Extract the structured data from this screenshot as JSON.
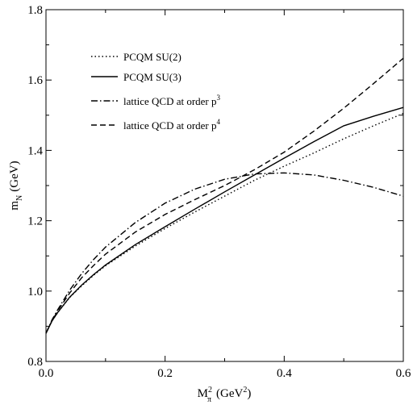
{
  "chart_data": {
    "type": "line",
    "title": "",
    "xlabel": {
      "base": "M",
      "sub": "π",
      "sup": "2",
      "unit_prefix": "(GeV",
      "unit_sup": "2",
      "unit_suffix": ")"
    },
    "ylabel": {
      "base": "m",
      "sub": "N",
      "unit": "(GeV)"
    },
    "xlim": [
      0.0,
      0.6
    ],
    "ylim": [
      0.8,
      1.8
    ],
    "x_ticks": [
      "0.0",
      "0.2",
      "0.4",
      "0.6"
    ],
    "y_ticks": [
      "0.8",
      "1.0",
      "1.2",
      "1.4",
      "1.6",
      "1.8"
    ],
    "grid": false,
    "legend_position": "top-left",
    "series": [
      {
        "name": "PCQM SU(2)",
        "dash": "dotted",
        "x": [
          0.0,
          0.01,
          0.02,
          0.04,
          0.06,
          0.08,
          0.1,
          0.15,
          0.2,
          0.25,
          0.3,
          0.35,
          0.4,
          0.45,
          0.5,
          0.55,
          0.6
        ],
        "y": [
          0.88,
          0.915,
          0.94,
          0.982,
          1.015,
          1.045,
          1.072,
          1.128,
          1.178,
          1.225,
          1.27,
          1.315,
          1.355,
          1.393,
          1.433,
          1.47,
          1.505
        ]
      },
      {
        "name": "PCQM SU(3)",
        "dash": "solid",
        "x": [
          0.0,
          0.01,
          0.02,
          0.04,
          0.06,
          0.08,
          0.1,
          0.15,
          0.2,
          0.25,
          0.3,
          0.35,
          0.4,
          0.45,
          0.5,
          0.55,
          0.6
        ],
        "y": [
          0.88,
          0.915,
          0.94,
          0.983,
          1.017,
          1.047,
          1.074,
          1.132,
          1.183,
          1.233,
          1.282,
          1.33,
          1.378,
          1.425,
          1.47,
          1.497,
          1.522
        ]
      },
      {
        "name": "lattice QCD at order p",
        "name_sup": "3",
        "dash": "dashdot",
        "x": [
          0.0,
          0.01,
          0.02,
          0.04,
          0.06,
          0.08,
          0.1,
          0.15,
          0.2,
          0.25,
          0.3,
          0.35,
          0.4,
          0.45,
          0.5,
          0.55,
          0.6
        ],
        "y": [
          0.88,
          0.918,
          0.948,
          1.003,
          1.05,
          1.09,
          1.125,
          1.195,
          1.25,
          1.29,
          1.318,
          1.333,
          1.336,
          1.33,
          1.315,
          1.295,
          1.27
        ]
      },
      {
        "name": "lattice QCD at order p",
        "name_sup": "4",
        "dash": "dashed",
        "x": [
          0.0,
          0.01,
          0.02,
          0.04,
          0.06,
          0.08,
          0.1,
          0.15,
          0.2,
          0.25,
          0.3,
          0.35,
          0.4,
          0.45,
          0.5,
          0.55,
          0.6
        ],
        "y": [
          0.88,
          0.915,
          0.945,
          0.995,
          1.038,
          1.073,
          1.105,
          1.168,
          1.218,
          1.26,
          1.3,
          1.345,
          1.395,
          1.455,
          1.52,
          1.59,
          1.662
        ]
      }
    ]
  }
}
